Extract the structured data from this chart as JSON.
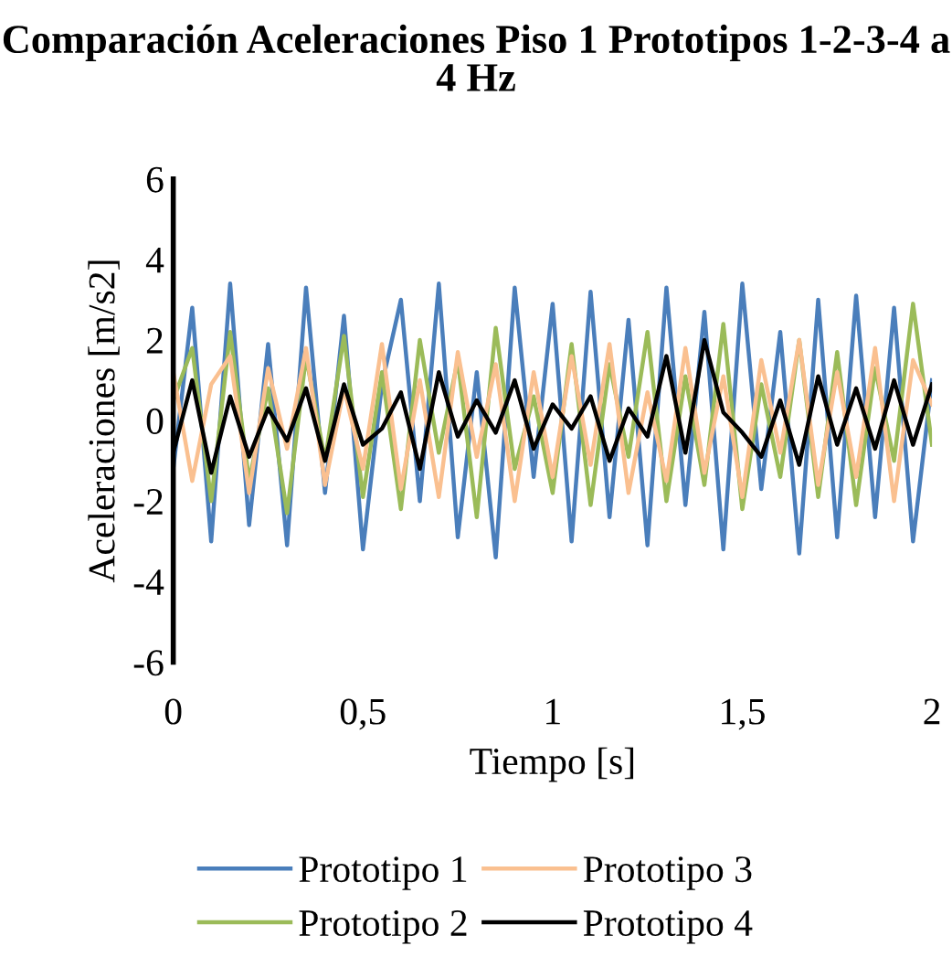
{
  "chart_data": {
    "type": "line",
    "title": "Comparación Aceleraciones Piso 1 Prototipos 1-2-3-4 a 4 Hz",
    "xlabel": "Tiempo [s]",
    "ylabel": "Aceleraciones [m/s2]",
    "x": [
      0,
      0.05,
      0.1,
      0.15,
      0.2,
      0.25,
      0.3,
      0.35,
      0.4,
      0.45,
      0.5,
      0.55,
      0.6,
      0.65,
      0.7,
      0.75,
      0.8,
      0.85,
      0.9,
      0.95,
      1,
      1.05,
      1.1,
      1.15,
      1.2,
      1.25,
      1.3,
      1.35,
      1.4,
      1.45,
      1.5,
      1.55,
      1.6,
      1.65,
      1.7,
      1.75,
      1.8,
      1.85,
      1.9,
      1.95,
      2
    ],
    "series": [
      {
        "name": "Prototipo 1",
        "color": "#4a7ebb",
        "values": [
          -1.2,
          2.8,
          -3.0,
          3.4,
          -2.6,
          1.9,
          -3.1,
          3.3,
          -1.8,
          2.6,
          -3.2,
          0.9,
          3.0,
          -2.0,
          3.4,
          -2.9,
          1.2,
          -3.4,
          3.3,
          -1.4,
          2.9,
          -3.0,
          3.2,
          -2.4,
          2.5,
          -3.1,
          3.3,
          -2.1,
          2.7,
          -3.2,
          3.4,
          -1.7,
          2.2,
          -3.3,
          3.0,
          -2.9,
          3.1,
          -2.4,
          2.8,
          -3.0,
          1.0
        ]
      },
      {
        "name": "Prototipo 2",
        "color": "#9bbb59",
        "values": [
          0.5,
          1.8,
          -2.0,
          2.2,
          -1.5,
          0.8,
          -2.3,
          1.6,
          -1.0,
          2.1,
          -1.9,
          1.2,
          -2.2,
          2.0,
          -0.8,
          1.5,
          -2.4,
          2.3,
          -1.2,
          0.6,
          -1.8,
          1.9,
          -2.1,
          1.4,
          -0.9,
          2.2,
          -2.0,
          1.1,
          -1.6,
          2.4,
          -2.2,
          0.9,
          -1.4,
          2.0,
          -1.9,
          1.7,
          -2.1,
          1.3,
          -1.0,
          2.9,
          -0.6
        ]
      },
      {
        "name": "Prototipo 3",
        "color": "#fac090",
        "values": [
          1.2,
          -1.5,
          0.9,
          1.6,
          -1.8,
          1.3,
          -0.7,
          1.8,
          -1.6,
          0.8,
          -1.2,
          1.9,
          -1.7,
          1.0,
          -1.9,
          1.7,
          -0.9,
          1.4,
          -2.0,
          1.2,
          -1.4,
          1.6,
          -1.1,
          1.9,
          -1.8,
          0.7,
          -1.5,
          1.8,
          -1.3,
          1.1,
          -1.9,
          1.5,
          -0.8,
          2.0,
          -1.6,
          1.2,
          -1.4,
          1.8,
          -2.0,
          1.5,
          0.4
        ]
      },
      {
        "name": "Prototipo 4",
        "color": "#000000",
        "values": [
          -0.8,
          1.0,
          -1.3,
          0.6,
          -0.9,
          0.3,
          -0.5,
          0.8,
          -1.0,
          0.9,
          -0.6,
          -0.2,
          0.7,
          -1.2,
          1.2,
          -0.4,
          0.5,
          -0.3,
          1.0,
          -0.7,
          0.4,
          -0.2,
          0.6,
          -1.0,
          0.3,
          -0.4,
          1.6,
          -0.8,
          2.0,
          0.2,
          -0.3,
          -0.9,
          0.5,
          -1.1,
          1.1,
          -0.6,
          0.8,
          -0.7,
          1.0,
          -0.6,
          0.9
        ]
      }
    ],
    "xlim": [
      0,
      2
    ],
    "xticks": [
      0,
      {
        "value": 0.5,
        "label": "0,5"
      },
      1,
      {
        "value": 1.5,
        "label": "1,5"
      },
      2
    ],
    "ylim": [
      -6,
      6
    ],
    "yticks": [
      -6,
      -4,
      -2,
      0,
      2,
      4,
      6
    ],
    "grid": false,
    "legend": "bottom",
    "marker": "none",
    "line_style": "solid"
  }
}
